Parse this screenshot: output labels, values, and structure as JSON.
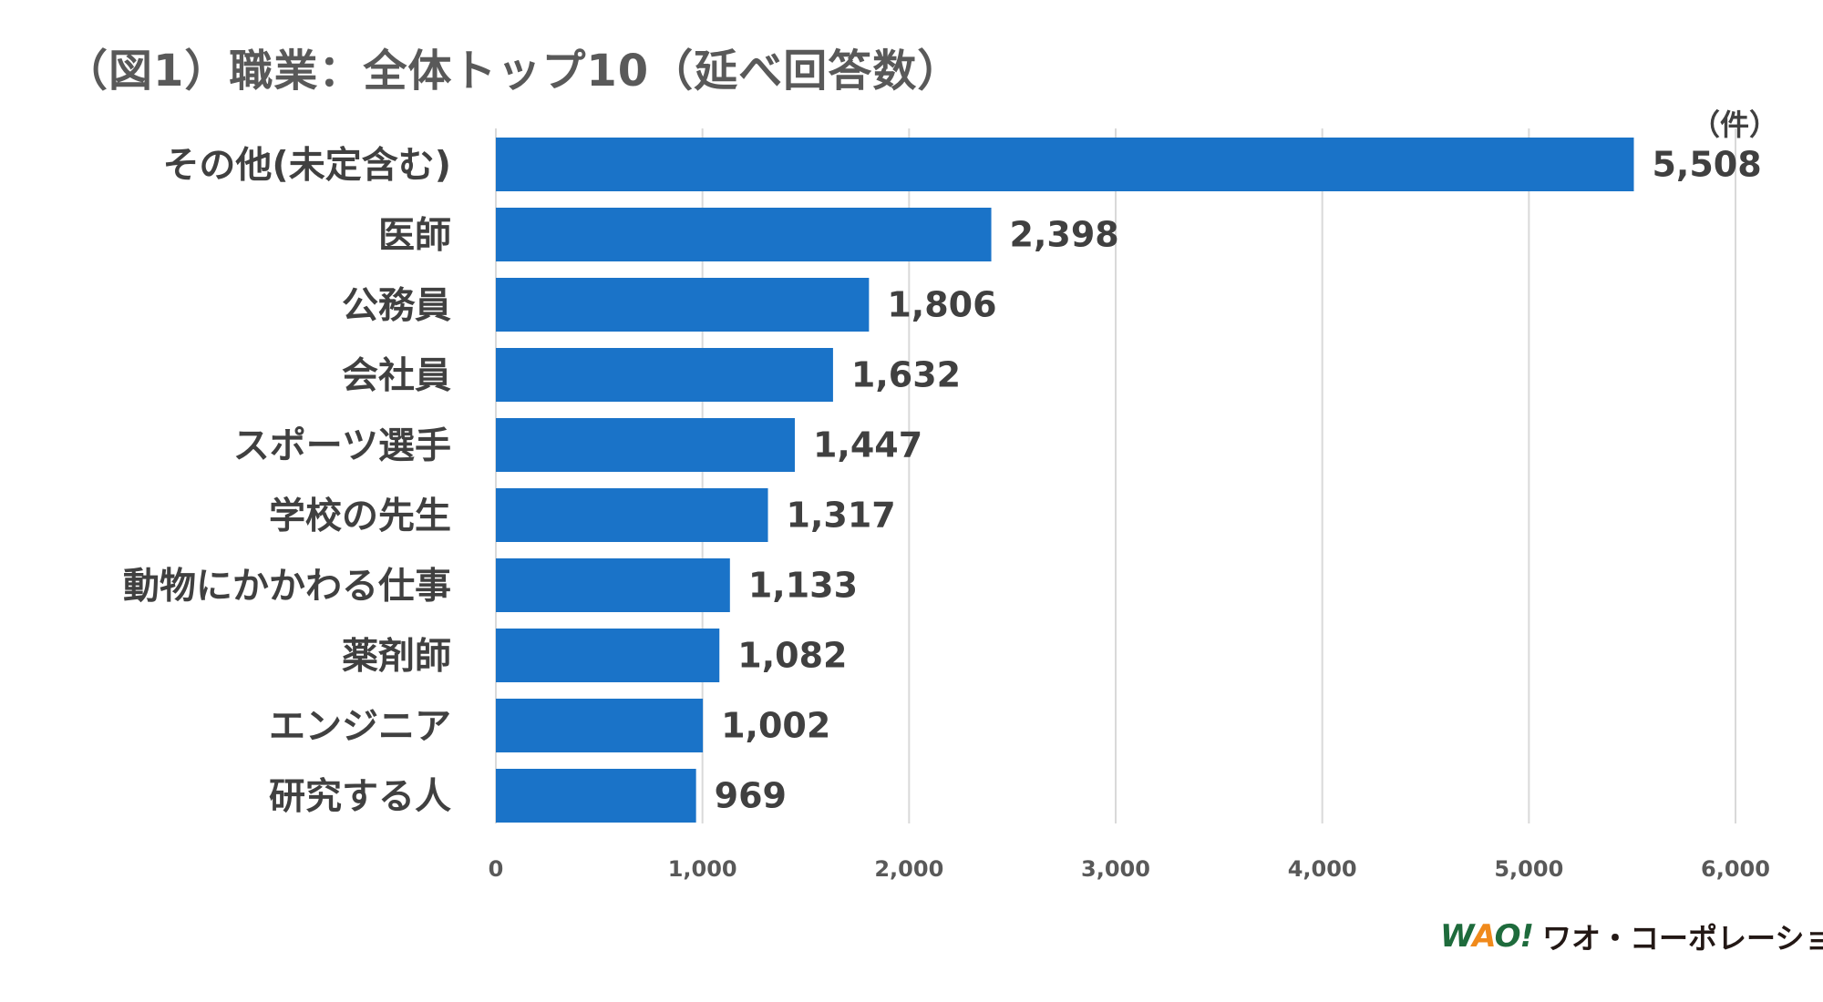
{
  "chart_data": {
    "type": "bar",
    "orientation": "horizontal",
    "title": "（図1）職業：全体トップ10（延べ回答数）",
    "unit_label": "（件）",
    "categories": [
      "その他(未定含む)",
      "医師",
      "公務員",
      "会社員",
      "スポーツ選手",
      "学校の先生",
      "動物にかかわる仕事",
      "薬剤師",
      "エンジニア",
      "研究する人"
    ],
    "values": [
      5508,
      2398,
      1806,
      1632,
      1447,
      1317,
      1133,
      1082,
      1002,
      969
    ],
    "value_labels": [
      "5,508",
      "2,398",
      "1,806",
      "1,632",
      "1,447",
      "1,317",
      "1,133",
      "1,082",
      "1,002",
      "969"
    ],
    "xlim": [
      0,
      6000
    ],
    "x_ticks": [
      0,
      1000,
      2000,
      3000,
      4000,
      5000,
      6000
    ],
    "x_tick_labels": [
      "0",
      "1,000",
      "2,000",
      "3,000",
      "4,000",
      "5,000",
      "6,000"
    ],
    "grid": "vertical",
    "legend": "none",
    "bar_color": "#1a73c8"
  },
  "logo": {
    "mark": "WAO!",
    "name": "ワオ・コーポレーション"
  }
}
